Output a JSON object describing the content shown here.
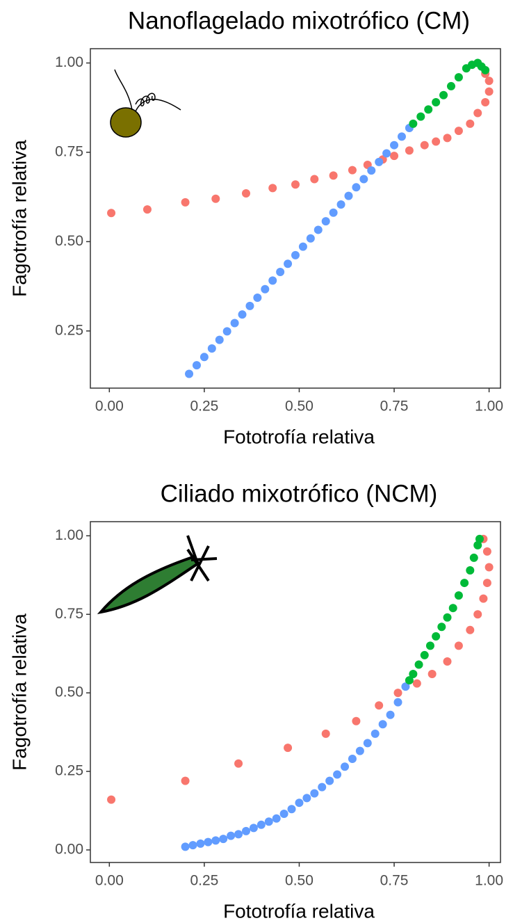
{
  "chart_data": [
    {
      "type": "scatter",
      "title": "Nanoflagelado mixotrófico (CM)",
      "x_label": "Fototrofía relativa",
      "y_label": "Fagotrofía relativa",
      "xlim": [
        -0.05,
        1.03
      ],
      "ylim": [
        0.09,
        1.04
      ],
      "xticks": [
        {
          "value": 0,
          "label": "0.00"
        },
        {
          "value": 0.25,
          "label": "0.25"
        },
        {
          "value": 0.5,
          "label": "0.50"
        },
        {
          "value": 0.75,
          "label": "0.75"
        },
        {
          "value": 1,
          "label": "1.00"
        }
      ],
      "yticks": [
        {
          "value": 0.25,
          "label": "0.25"
        },
        {
          "value": 0.5,
          "label": "0.50"
        },
        {
          "value": 0.75,
          "label": "0.75"
        },
        {
          "value": 1,
          "label": "1.00"
        }
      ],
      "series": [
        {
          "color": "#f8766d",
          "x": [
            0.005,
            0.1,
            0.2,
            0.28,
            0.36,
            0.43,
            0.49,
            0.54,
            0.59,
            0.64,
            0.68,
            0.72,
            0.75,
            0.79,
            0.83,
            0.86,
            0.89,
            0.92,
            0.95,
            0.97,
            0.99,
            1.0,
            1.0,
            0.99
          ],
          "values": [
            0.58,
            0.59,
            0.61,
            0.62,
            0.635,
            0.65,
            0.66,
            0.675,
            0.685,
            0.7,
            0.715,
            0.73,
            0.74,
            0.755,
            0.77,
            0.78,
            0.79,
            0.81,
            0.83,
            0.86,
            0.89,
            0.92,
            0.95,
            0.97
          ]
        },
        {
          "color": "#619cff",
          "x": [
            0.21,
            0.23,
            0.25,
            0.27,
            0.29,
            0.31,
            0.33,
            0.35,
            0.37,
            0.39,
            0.41,
            0.43,
            0.45,
            0.47,
            0.49,
            0.51,
            0.53,
            0.55,
            0.57,
            0.59,
            0.61,
            0.63,
            0.65,
            0.67,
            0.69,
            0.71,
            0.73,
            0.75,
            0.77,
            0.79
          ],
          "values": [
            0.13,
            0.154,
            0.177,
            0.201,
            0.225,
            0.249,
            0.272,
            0.296,
            0.32,
            0.343,
            0.367,
            0.391,
            0.415,
            0.438,
            0.462,
            0.486,
            0.509,
            0.533,
            0.557,
            0.581,
            0.604,
            0.628,
            0.652,
            0.675,
            0.699,
            0.723,
            0.747,
            0.77,
            0.794,
            0.818
          ]
        },
        {
          "color": "#00ba38",
          "x": [
            0.8,
            0.82,
            0.84,
            0.86,
            0.88,
            0.9,
            0.92,
            0.94,
            0.955,
            0.97,
            0.98,
            0.99
          ],
          "values": [
            0.83,
            0.85,
            0.87,
            0.89,
            0.91,
            0.935,
            0.96,
            0.985,
            0.995,
            1.0,
            0.99,
            0.98
          ]
        }
      ]
    },
    {
      "type": "scatter",
      "title": "Ciliado mixotrófico (NCM)",
      "x_label": "Fototrofía relativa",
      "y_label": "Fagotrofía relativa",
      "xlim": [
        -0.05,
        1.03
      ],
      "ylim": [
        -0.04,
        1.045
      ],
      "xticks": [
        {
          "value": 0,
          "label": "0.00"
        },
        {
          "value": 0.25,
          "label": "0.25"
        },
        {
          "value": 0.5,
          "label": "0.50"
        },
        {
          "value": 0.75,
          "label": "0.75"
        },
        {
          "value": 1,
          "label": "1.00"
        }
      ],
      "yticks": [
        {
          "value": 0,
          "label": "0.00"
        },
        {
          "value": 0.25,
          "label": "0.25"
        },
        {
          "value": 0.5,
          "label": "0.50"
        },
        {
          "value": 0.75,
          "label": "0.75"
        },
        {
          "value": 1,
          "label": "1.00"
        }
      ],
      "series": [
        {
          "color": "#f8766d",
          "x": [
            0.005,
            0.2,
            0.34,
            0.47,
            0.57,
            0.65,
            0.71,
            0.76,
            0.81,
            0.85,
            0.89,
            0.92,
            0.95,
            0.97,
            0.985,
            0.995,
            1.0,
            0.995,
            0.985
          ],
          "values": [
            0.16,
            0.22,
            0.275,
            0.325,
            0.37,
            0.41,
            0.46,
            0.5,
            0.53,
            0.56,
            0.6,
            0.65,
            0.7,
            0.75,
            0.8,
            0.85,
            0.9,
            0.95,
            0.99
          ]
        },
        {
          "color": "#619cff",
          "x": [
            0.2,
            0.22,
            0.24,
            0.26,
            0.28,
            0.3,
            0.32,
            0.34,
            0.36,
            0.38,
            0.4,
            0.42,
            0.44,
            0.46,
            0.48,
            0.5,
            0.52,
            0.54,
            0.56,
            0.58,
            0.6,
            0.62,
            0.64,
            0.66,
            0.68,
            0.7,
            0.72,
            0.74,
            0.76,
            0.78
          ],
          "values": [
            0.01,
            0.015,
            0.02,
            0.025,
            0.03,
            0.035,
            0.045,
            0.05,
            0.06,
            0.07,
            0.08,
            0.09,
            0.1,
            0.115,
            0.13,
            0.15,
            0.165,
            0.18,
            0.2,
            0.22,
            0.24,
            0.265,
            0.29,
            0.315,
            0.34,
            0.37,
            0.4,
            0.43,
            0.47,
            0.52
          ]
        },
        {
          "color": "#00ba38",
          "x": [
            0.79,
            0.8,
            0.815,
            0.83,
            0.845,
            0.86,
            0.875,
            0.89,
            0.905,
            0.92,
            0.935,
            0.95,
            0.96,
            0.97,
            0.975
          ],
          "values": [
            0.54,
            0.56,
            0.59,
            0.62,
            0.65,
            0.68,
            0.71,
            0.74,
            0.77,
            0.81,
            0.85,
            0.89,
            0.93,
            0.97,
            0.99
          ]
        }
      ]
    }
  ]
}
